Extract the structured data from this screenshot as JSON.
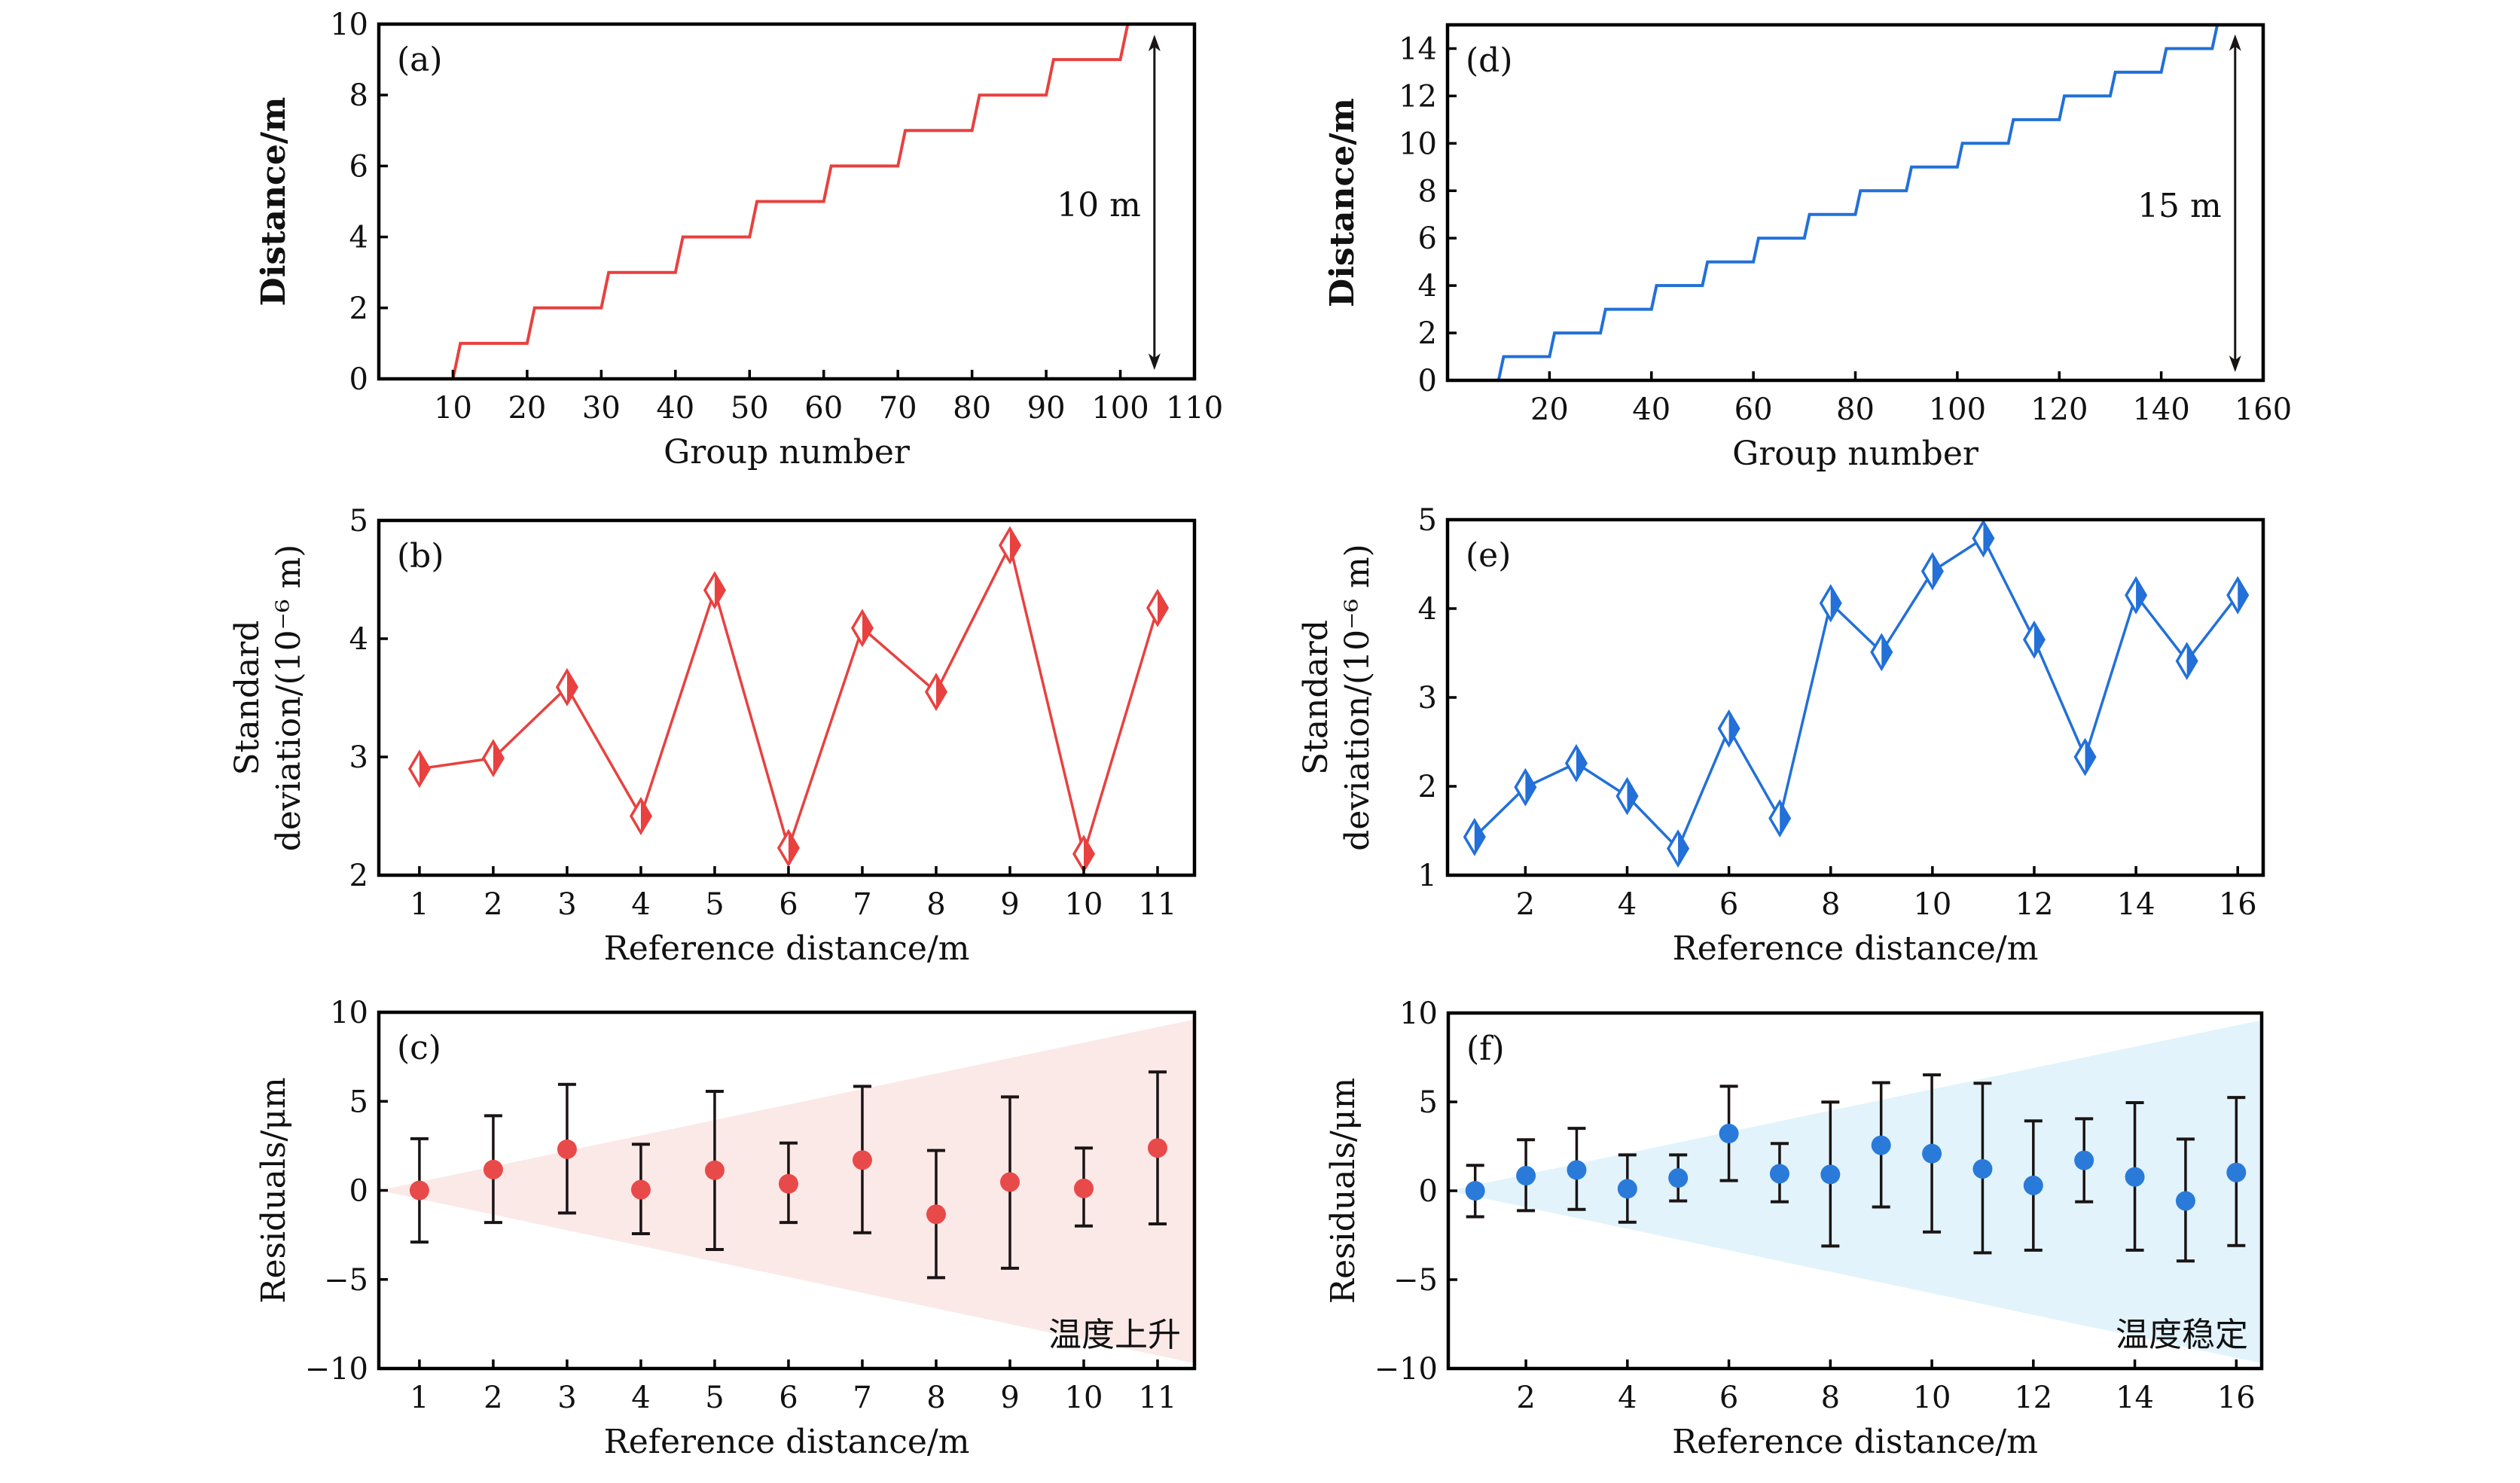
{
  "chart_data": [
    {
      "id": "a",
      "panel_label": "(a)",
      "type": "line",
      "style": "step",
      "color": "#e8413f",
      "xlabel": "Group number",
      "ylabel": "Distance/m",
      "xlim": [
        0,
        110
      ],
      "ylim": [
        0,
        10
      ],
      "xticks": [
        10,
        20,
        30,
        40,
        50,
        60,
        70,
        80,
        90,
        100,
        110
      ],
      "yticks": [
        0,
        2,
        4,
        6,
        8,
        10
      ],
      "x": [
        0,
        10,
        11,
        20,
        21,
        30,
        31,
        40,
        41,
        50,
        51,
        60,
        61,
        70,
        71,
        80,
        81,
        90,
        91,
        100,
        101,
        110
      ],
      "y": [
        0,
        0,
        1,
        1,
        2,
        2,
        3,
        3,
        4,
        4,
        5,
        5,
        6,
        6,
        7,
        7,
        8,
        8,
        9,
        9,
        10,
        10
      ],
      "annotation": {
        "text": "10 m",
        "arrow_x": 104.6,
        "arrow_from": 0.25,
        "arrow_to": 9.7
      }
    },
    {
      "id": "b",
      "panel_label": "(b)",
      "type": "line",
      "marker": "half-filled-diamond",
      "color": "#e8413f",
      "xlabel": "Reference distance/m",
      "ylabel_line1": "Standard",
      "ylabel_line2": "deviation/(10⁻⁶ m)",
      "xlim": [
        0.45,
        11.5
      ],
      "ylim": [
        2,
        5
      ],
      "xticks": [
        1,
        2,
        3,
        4,
        5,
        6,
        7,
        8,
        9,
        10,
        11
      ],
      "yticks": [
        2,
        3,
        4,
        5
      ],
      "x": [
        1,
        2,
        3,
        4,
        5,
        6,
        7,
        8,
        9,
        10,
        11
      ],
      "y": [
        2.9,
        2.99,
        3.59,
        2.5,
        4.41,
        2.23,
        4.09,
        3.55,
        4.79,
        2.18,
        4.26
      ]
    },
    {
      "id": "c",
      "panel_label": "(c)",
      "type": "scatter",
      "errorbars": true,
      "color": "#e84a4a",
      "band_color": "#fbe9e8",
      "xlabel": "Reference distance/m",
      "ylabel": "Residuals/μm",
      "xlim": [
        0.45,
        11.5
      ],
      "ylim": [
        -10,
        10
      ],
      "xticks": [
        1,
        2,
        3,
        4,
        5,
        6,
        7,
        8,
        9,
        10,
        11
      ],
      "yticks": [
        -10,
        -5,
        0,
        5,
        10
      ],
      "x": [
        1,
        2,
        3,
        4,
        5,
        6,
        7,
        8,
        9,
        10,
        11
      ],
      "y": [
        0.0,
        1.17,
        2.31,
        0.04,
        1.13,
        0.37,
        1.7,
        -1.34,
        0.47,
        0.11,
        2.38
      ],
      "err_upper": [
        2.9,
        4.19,
        5.95,
        2.59,
        5.56,
        2.66,
        5.84,
        2.24,
        5.25,
        2.38,
        6.65
      ],
      "err_lower": [
        -2.9,
        -1.8,
        -1.27,
        -2.43,
        -3.32,
        -1.8,
        -2.38,
        -4.9,
        -4.37,
        -2.0,
        -1.88
      ],
      "band": {
        "apex_x": 1,
        "apex_y": 0,
        "end_upper": 9.6,
        "end_lower": -9.7
      },
      "annotation": {
        "text": "温度上升"
      }
    },
    {
      "id": "d",
      "panel_label": "(d)",
      "type": "line",
      "style": "step",
      "color": "#2270d8",
      "xlabel": "Group number",
      "ylabel": "Distance/m",
      "xlim": [
        0,
        160
      ],
      "ylim": [
        0,
        15
      ],
      "xticks": [
        20,
        40,
        60,
        80,
        100,
        120,
        140,
        160
      ],
      "yticks": [
        0,
        2,
        4,
        6,
        8,
        10,
        12,
        14
      ],
      "x": [
        0,
        10,
        11,
        20,
        21,
        30,
        31,
        40,
        41,
        50,
        51,
        60,
        61,
        70,
        71,
        80,
        81,
        90,
        91,
        100,
        101,
        110,
        111,
        120,
        121,
        130,
        131,
        140,
        141,
        150,
        151,
        160
      ],
      "y": [
        0,
        0,
        1,
        1,
        2,
        2,
        3,
        3,
        4,
        4,
        5,
        5,
        6,
        6,
        7,
        7,
        8,
        8,
        9,
        9,
        10,
        10,
        11,
        11,
        12,
        12,
        13,
        13,
        14,
        14,
        15,
        15
      ],
      "annotation": {
        "text": "15 m",
        "arrow_x": 154.5,
        "arrow_from": 0.35,
        "arrow_to": 14.6
      }
    },
    {
      "id": "e",
      "panel_label": "(e)",
      "type": "line",
      "marker": "half-filled-diamond",
      "color": "#2270d8",
      "xlabel": "Reference distance/m",
      "ylabel_line1": "Standard",
      "ylabel_line2": "deviation/(10⁻⁶ m)",
      "xlim": [
        0.47,
        16.5
      ],
      "ylim": [
        1,
        5
      ],
      "xticks": [
        2,
        4,
        6,
        8,
        10,
        12,
        14,
        16
      ],
      "yticks": [
        1,
        2,
        3,
        4,
        5
      ],
      "x": [
        1,
        2,
        3,
        4,
        5,
        6,
        7,
        8,
        9,
        10,
        11,
        12,
        13,
        14,
        15,
        16
      ],
      "y": [
        1.43,
        1.99,
        2.26,
        1.89,
        1.3,
        2.65,
        1.64,
        4.06,
        3.51,
        4.42,
        4.79,
        3.65,
        2.33,
        4.15,
        3.41,
        4.15
      ]
    },
    {
      "id": "f",
      "panel_label": "(f)",
      "type": "scatter",
      "errorbars": true,
      "color": "#2a7ad9",
      "band_color": "#e2f3fb",
      "xlabel": "Reference distance/m",
      "ylabel": "Residuals/μm",
      "xlim": [
        0.47,
        16.5
      ],
      "ylim": [
        -10,
        10
      ],
      "xticks": [
        2,
        4,
        6,
        8,
        10,
        12,
        14,
        16
      ],
      "yticks": [
        -10,
        -5,
        0,
        5,
        10
      ],
      "x": [
        1,
        2,
        3,
        4,
        5,
        6,
        7,
        8,
        9,
        10,
        11,
        12,
        13,
        14,
        15,
        16
      ],
      "y": [
        0.0,
        0.85,
        1.17,
        0.11,
        0.72,
        3.22,
        0.96,
        0.92,
        2.56,
        2.09,
        1.23,
        0.3,
        1.71,
        0.78,
        -0.57,
        1.03
      ],
      "err_upper": [
        1.43,
        2.87,
        3.51,
        2.02,
        2.02,
        5.88,
        2.66,
        4.99,
        6.08,
        6.52,
        6.05,
        3.93,
        4.05,
        4.96,
        2.91,
        5.25
      ],
      "err_lower": [
        -1.46,
        -1.12,
        -1.05,
        -1.77,
        -0.57,
        0.57,
        -0.62,
        -3.11,
        -0.91,
        -2.32,
        -3.49,
        -3.34,
        -0.62,
        -3.34,
        -3.95,
        -3.08
      ],
      "band": {
        "apex_x": 1,
        "apex_y": 0,
        "end_upper": 9.6,
        "end_lower": -9.7
      },
      "annotation": {
        "text": "温度稳定"
      }
    }
  ]
}
